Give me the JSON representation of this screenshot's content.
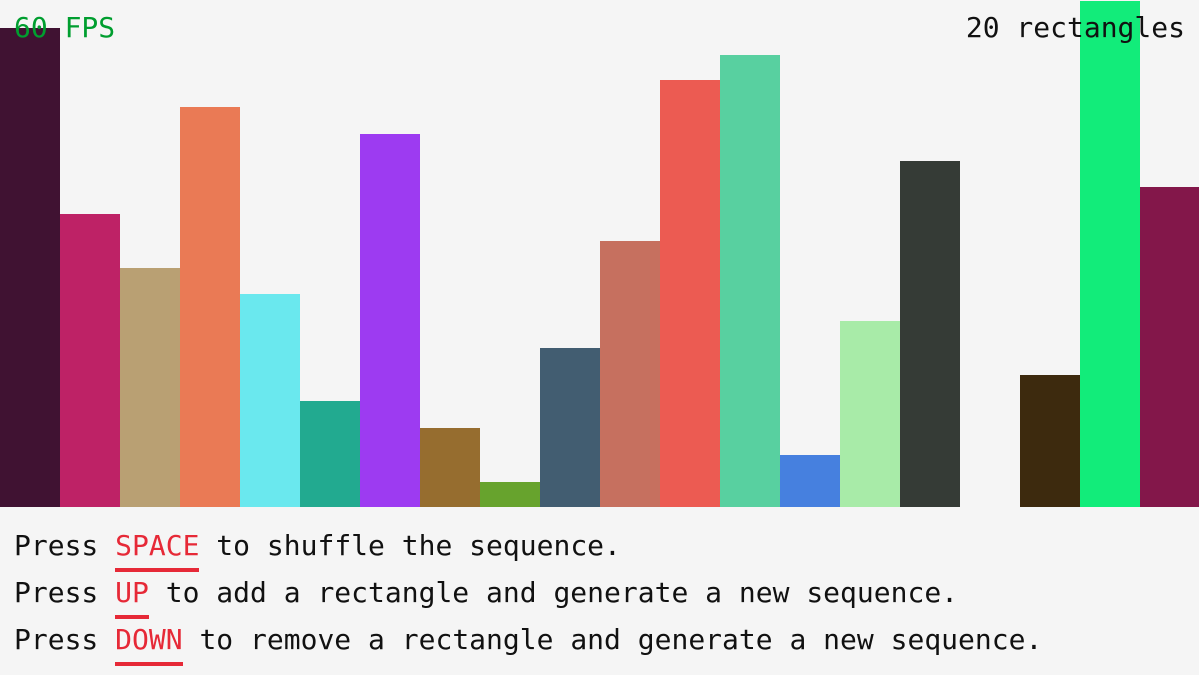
{
  "hud": {
    "fps": "60 FPS",
    "count": "20 rectangles"
  },
  "colors": {
    "background": "#f5f5f5",
    "fps": "#009e2f",
    "key": "#e62937",
    "text": "#111111"
  },
  "sequence": {
    "values": [
      479,
      293,
      239,
      400,
      213,
      106,
      373,
      79,
      25,
      159,
      266,
      427,
      452,
      52,
      186,
      346,
      0,
      132,
      506,
      320
    ],
    "colors": [
      "#401232",
      "#be2266",
      "#b9a073",
      "#ea7a55",
      "#6ae8ee",
      "#22aa90",
      "#9d3bf1",
      "#966d2f",
      "#67a32d",
      "#425d71",
      "#c6705f",
      "#ec5b52",
      "#58d0a0",
      "#4680df",
      "#a8eba8",
      "#353b36",
      "#cccccc",
      "#3d2a0e",
      "#12ec7a",
      "#83174a"
    ]
  },
  "instructions": [
    {
      "pre": "Press ",
      "key": "SPACE",
      "post": " to shuffle the sequence."
    },
    {
      "pre": "Press ",
      "key": "UP",
      "post": " to add a rectangle and generate a new sequence."
    },
    {
      "pre": "Press ",
      "key": "DOWN",
      "post": " to remove a rectangle and generate a new sequence."
    }
  ]
}
